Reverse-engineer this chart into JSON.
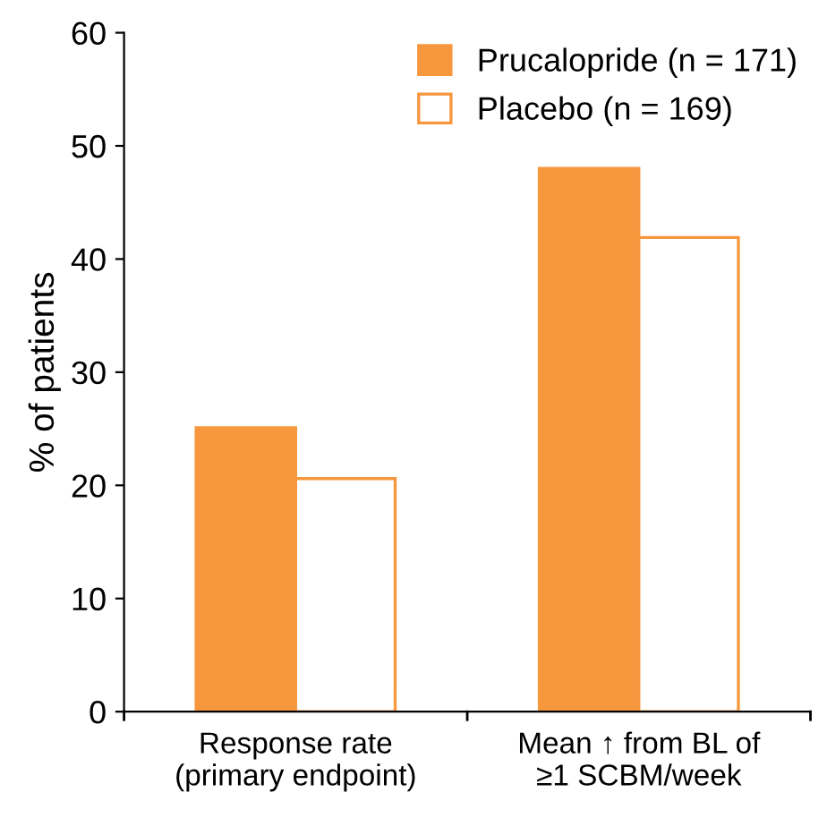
{
  "chart_data": {
    "type": "bar",
    "ylabel": "% of patients",
    "categories": [
      "Response rate\n(primary endpoint)",
      "Mean ↑ from BL of\n≥1 SCBM/week"
    ],
    "series": [
      {
        "name": "Prucalopride (n = 171)",
        "color": "#f7973e",
        "values": [
          25.1,
          48.0
        ]
      },
      {
        "name": "Placebo (n = 169)",
        "color": "#ffffff",
        "values": [
          20.6,
          41.9
        ]
      }
    ],
    "ylim": [
      0,
      60
    ],
    "yticks": [
      0,
      10,
      20,
      30,
      40,
      50,
      60
    ],
    "grid": false,
    "legend": "top right"
  }
}
